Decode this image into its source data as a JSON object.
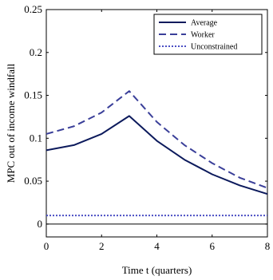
{
  "chart_data": {
    "type": "line",
    "xlabel": "Time t (quarters)",
    "ylabel": "MPC out of income windfall",
    "xlim": [
      0,
      8
    ],
    "ylim": [
      -0.015,
      0.25
    ],
    "xticks": [
      0,
      2,
      4,
      6,
      8
    ],
    "yticks": [
      0,
      0.05,
      0.1,
      0.15,
      0.2,
      0.25
    ],
    "xtick_labels": [
      "0",
      "2",
      "4",
      "6",
      "8"
    ],
    "ytick_labels": [
      "0",
      "0.05",
      "0.1",
      "0.15",
      "0.2",
      "0.25"
    ],
    "grid": false,
    "legend_position": "top-right",
    "x": [
      0,
      1,
      2,
      3,
      4,
      5,
      6,
      7,
      8
    ],
    "series": [
      {
        "name": "Average",
        "style": "solid",
        "color": "#0c1a5c",
        "values": [
          0.086,
          0.092,
          0.105,
          0.126,
          0.097,
          0.075,
          0.058,
          0.045,
          0.035
        ]
      },
      {
        "name": "Worker",
        "style": "dashed",
        "color": "#3a3f99",
        "values": [
          0.105,
          0.114,
          0.13,
          0.155,
          0.119,
          0.092,
          0.071,
          0.054,
          0.042
        ]
      },
      {
        "name": "Unconstrained",
        "style": "dotted",
        "color": "#4b4fc4",
        "values": [
          0.01,
          0.01,
          0.01,
          0.01,
          0.01,
          0.01,
          0.01,
          0.01,
          0.01
        ]
      }
    ],
    "reference_line": {
      "y": 0,
      "color": "#000000"
    }
  }
}
